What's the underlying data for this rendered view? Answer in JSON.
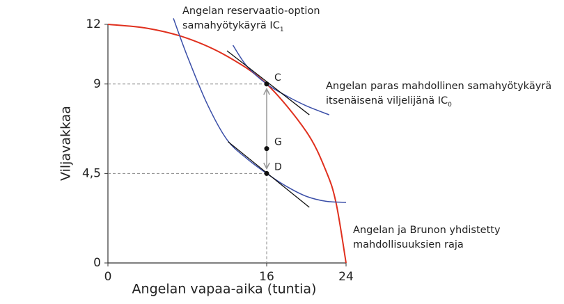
{
  "chart_data": {
    "type": "line",
    "xlabel": "Angelan vapaa-aika (tuntia)",
    "ylabel": "Viljavakkaa",
    "xlim": [
      0,
      24
    ],
    "ylim": [
      0,
      12
    ],
    "xticks": [
      0,
      16,
      24
    ],
    "yticks": [
      0,
      {
        "value": 4.5,
        "label": "4,5"
      },
      9,
      12
    ],
    "series": [
      {
        "color": "#e0301e",
        "x": [
          0,
          4,
          8,
          12,
          16,
          20,
          22,
          23,
          24
        ],
        "values": [
          12,
          11.8,
          11.3,
          10.4,
          9,
          6.6,
          4.6,
          3.0,
          0
        ]
      },
      {
        "color": "#3b4fa8",
        "x": [
          6.6,
          8,
          10,
          12,
          14,
          16,
          18,
          20,
          22,
          24
        ],
        "values": [
          12.3,
          10.4,
          8.0,
          6.2,
          5.25,
          4.5,
          3.85,
          3.35,
          3.1,
          3.05
        ]
      },
      {
        "color": "#3b4fa8",
        "x": [
          12.6,
          14,
          16,
          18,
          20,
          22.3
        ],
        "values": [
          10.95,
          9.9,
          9,
          8.4,
          7.9,
          7.45
        ]
      },
      {
        "color": "#111111",
        "x": [
          12,
          20.3
        ],
        "values": [
          10.67,
          7.45
        ]
      },
      {
        "color": "#111111",
        "x": [
          12.1,
          20.3
        ],
        "values": [
          6.1,
          2.8
        ]
      }
    ],
    "points": [
      {
        "name": "C",
        "x": 16,
        "y": 9
      },
      {
        "name": "G",
        "x": 16,
        "y": 5.75
      },
      {
        "name": "D",
        "x": 16,
        "y": 4.5
      }
    ],
    "annotations": [
      {
        "text": [
          "Angelan reservaatio-option",
          "samahyötykäyrä IC"
        ],
        "subscript": "1"
      },
      {
        "text": [
          "Angelan paras mahdollinen samahyötykäyrä",
          "itsenäisenä viljelijänä IC"
        ],
        "subscript": "0"
      },
      {
        "text": [
          "Angelan ja Brunon yhdistetty",
          "mahdollisuuksien raja"
        ]
      }
    ]
  }
}
